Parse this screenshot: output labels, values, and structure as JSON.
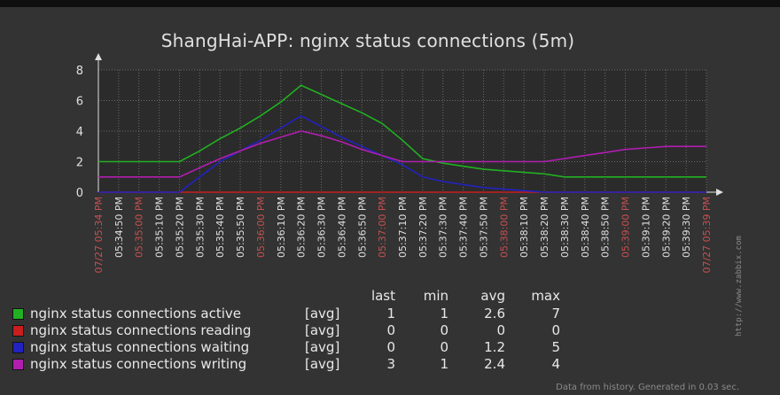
{
  "chart_data": {
    "type": "line",
    "title": "ShangHai-APP: nginx status connections (5m)",
    "ylim": [
      0,
      8
    ],
    "yticks": [
      0,
      2,
      4,
      6,
      8
    ],
    "grid": true,
    "x": [
      "07/27 05:34 PM",
      "05:34:50 PM",
      "05:35:00 PM",
      "05:35:10 PM",
      "05:35:20 PM",
      "05:35:30 PM",
      "05:35:40 PM",
      "05:35:50 PM",
      "05:36:00 PM",
      "05:36:10 PM",
      "05:36:20 PM",
      "05:36:30 PM",
      "05:36:40 PM",
      "05:36:50 PM",
      "05:37:00 PM",
      "05:37:10 PM",
      "05:37:20 PM",
      "05:37:30 PM",
      "05:37:40 PM",
      "05:37:50 PM",
      "05:38:00 PM",
      "05:38:10 PM",
      "05:38:20 PM",
      "05:38:30 PM",
      "05:38:40 PM",
      "05:38:50 PM",
      "05:39:00 PM",
      "05:39:10 PM",
      "05:39:20 PM",
      "05:39:30 PM",
      "07/27 05:39 PM"
    ],
    "x_labels_highlight": [
      0,
      2,
      8,
      14,
      20,
      26,
      30
    ],
    "series": [
      {
        "name": "nginx status connections active",
        "color": "#22b022",
        "values": [
          2,
          2,
          2,
          2,
          2,
          2.7,
          3.5,
          4.2,
          5,
          5.9,
          7,
          6.4,
          5.8,
          5.2,
          4.5,
          3.4,
          2.2,
          1.9,
          1.7,
          1.5,
          1.4,
          1.3,
          1.2,
          1,
          1,
          1,
          1,
          1,
          1,
          1,
          1
        ]
      },
      {
        "name": "nginx status connections reading",
        "color": "#c81e1e",
        "values": [
          0,
          0,
          0,
          0,
          0,
          0,
          0,
          0,
          0,
          0,
          0,
          0,
          0,
          0,
          0,
          0,
          0,
          0,
          0,
          0,
          0,
          0,
          0,
          0,
          0,
          0,
          0,
          0,
          0,
          0,
          0
        ]
      },
      {
        "name": "nginx status connections waiting",
        "color": "#2222c0",
        "values": [
          0,
          0,
          0,
          0,
          0,
          1,
          2,
          2.7,
          3.4,
          4.2,
          5,
          4.3,
          3.6,
          3,
          2.4,
          1.8,
          1,
          0.7,
          0.5,
          0.3,
          0.2,
          0.1,
          0,
          0,
          0,
          0,
          0,
          0,
          0,
          0,
          0
        ]
      },
      {
        "name": "nginx status connections writing",
        "color": "#b01eb0",
        "values": [
          1,
          1,
          1,
          1,
          1,
          1.6,
          2.2,
          2.7,
          3.2,
          3.6,
          4,
          3.7,
          3.3,
          2.8,
          2.4,
          2,
          2,
          2,
          2,
          2,
          2,
          2,
          2,
          2.2,
          2.4,
          2.6,
          2.8,
          2.9,
          3,
          3,
          3
        ]
      }
    ]
  },
  "legend": {
    "headers": {
      "last": "last",
      "min": "min",
      "avg": "avg",
      "max": "max"
    },
    "rows": [
      {
        "name": "nginx status connections active",
        "fn": "[avg]",
        "last": "1",
        "min": "1",
        "avg": "2.6",
        "max": "7",
        "color": "#22b022"
      },
      {
        "name": "nginx status connections reading",
        "fn": "[avg]",
        "last": "0",
        "min": "0",
        "avg": "0",
        "max": "0",
        "color": "#c81e1e"
      },
      {
        "name": "nginx status connections waiting",
        "fn": "[avg]",
        "last": "0",
        "min": "0",
        "avg": "1.2",
        "max": "5",
        "color": "#2222c0"
      },
      {
        "name": "nginx status connections writing",
        "fn": "[avg]",
        "last": "3",
        "min": "1",
        "avg": "2.4",
        "max": "4",
        "color": "#b01eb0"
      }
    ]
  },
  "watermark": "http://www.zabbix.com",
  "footer": "Data from history. Generated in 0.03 sec."
}
